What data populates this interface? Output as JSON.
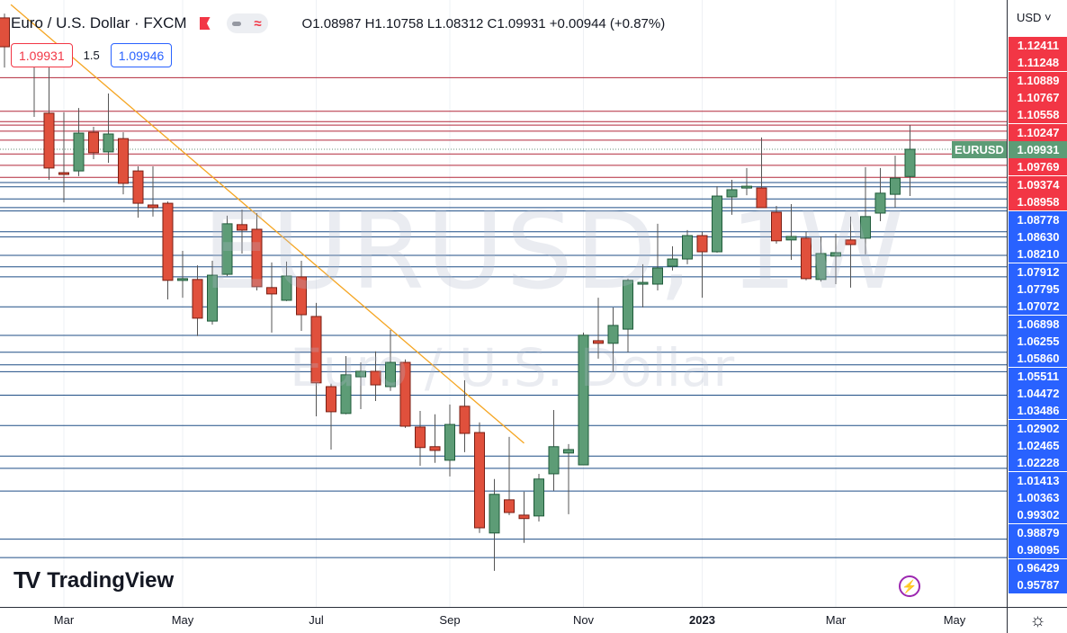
{
  "header": {
    "title": "Euro / U.S. Dollar · FXCM",
    "ohlc": "O1.08987 H1.10758 L1.08312 C1.09931 +0.00944 (+0.87%)",
    "sell_price": "1.09931",
    "spread": "1.5",
    "buy_price": "1.09946"
  },
  "watermark": {
    "symbol": "EURUSD, 1W",
    "description": "Euro / U.S. Dollar"
  },
  "price_axis": {
    "currency": "USD ˅"
  },
  "symbol_tag": "EURUSD",
  "logo": {
    "mark": "17",
    "name": "TradingView"
  },
  "icons": {
    "flag": "flag-icon",
    "minus": "minus-icon",
    "wave": "approx-icon",
    "bolt": "lightning-icon",
    "settings": "settings-sun-icon"
  },
  "colors": {
    "up": "#5d9c76",
    "down": "#e0503c",
    "resistance": "#f23645",
    "support": "#2962ff",
    "last": "#5d9c76",
    "trendline": "#f5a623"
  },
  "chart_data": {
    "type": "candlestick",
    "symbol": "EURUSD",
    "interval": "1W",
    "ylim": [
      0.9408,
      1.151
    ],
    "last_price": 1.09931,
    "candles_fields": [
      "date",
      "open",
      "high",
      "low",
      "close"
    ],
    "candles": [
      [
        "2022-02-07",
        1.1448,
        1.1463,
        1.1276,
        1.1348
      ],
      [
        "2022-02-14",
        1.1348,
        1.1358,
        1.128,
        1.132
      ],
      [
        "2022-02-21",
        1.1329,
        1.1354,
        1.1105,
        1.1292
      ],
      [
        "2022-02-28",
        1.1118,
        1.1276,
        1.0887,
        1.0928
      ],
      [
        "2022-03-07",
        1.0912,
        1.1121,
        1.0809,
        1.0909
      ],
      [
        "2022-03-14",
        1.0918,
        1.1136,
        1.09,
        1.1049
      ],
      [
        "2022-03-21",
        1.1052,
        1.1071,
        1.0959,
        1.0981
      ],
      [
        "2022-03-28",
        1.0984,
        1.1186,
        1.0946,
        1.1046
      ],
      [
        "2022-04-04",
        1.103,
        1.1052,
        1.0837,
        1.0875
      ],
      [
        "2022-04-11",
        1.0918,
        1.0934,
        1.0756,
        1.0806
      ],
      [
        "2022-04-18",
        1.08,
        1.0934,
        1.076,
        1.0791
      ],
      [
        "2022-04-25",
        1.0806,
        1.0812,
        1.0473,
        1.0539
      ],
      [
        "2022-05-02",
        1.0539,
        1.0641,
        1.0479,
        1.0545
      ],
      [
        "2022-05-09",
        1.0542,
        1.0591,
        1.0346,
        1.0408
      ],
      [
        "2022-05-16",
        1.0398,
        1.0607,
        1.0386,
        1.0557
      ],
      [
        "2022-05-23",
        1.056,
        1.0763,
        1.0554,
        1.0735
      ],
      [
        "2022-05-30",
        1.0732,
        1.0784,
        1.0632,
        1.0713
      ],
      [
        "2022-06-06",
        1.0716,
        1.0772,
        1.0504,
        1.0517
      ],
      [
        "2022-06-13",
        1.0514,
        1.0601,
        1.0358,
        1.0492
      ],
      [
        "2022-06-20",
        1.047,
        1.0604,
        1.0467,
        1.0554
      ],
      [
        "2022-06-27",
        1.0551,
        1.0607,
        1.0364,
        1.042
      ],
      [
        "2022-07-04",
        1.0414,
        1.0461,
        1.0068,
        1.0184
      ],
      [
        "2022-07-11",
        1.0171,
        1.0181,
        0.9953,
        1.0084
      ],
      [
        "2022-07-18",
        1.0078,
        1.0277,
        1.0075,
        1.0212
      ],
      [
        "2022-07-25",
        1.0205,
        1.0255,
        1.0093,
        1.0224
      ],
      [
        "2022-08-01",
        1.0224,
        1.0293,
        1.0121,
        1.0177
      ],
      [
        "2022-08-08",
        1.0171,
        1.0367,
        1.0156,
        1.0255
      ],
      [
        "2022-08-15",
        1.0255,
        1.0265,
        1.0028,
        1.0034
      ],
      [
        "2022-08-22",
        1.0031,
        1.0087,
        0.9897,
        0.996
      ],
      [
        "2022-08-29",
        0.9963,
        1.0075,
        0.9907,
        0.995
      ],
      [
        "2022-09-05",
        0.9916,
        1.0109,
        0.986,
        1.004
      ],
      [
        "2022-09-12",
        1.0103,
        1.0193,
        0.9944,
        1.0009
      ],
      [
        "2022-09-19",
        1.0012,
        1.0047,
        0.9664,
        0.9682
      ],
      [
        "2022-09-26",
        0.9664,
        0.9851,
        0.9533,
        0.9798
      ],
      [
        "2022-10-03",
        0.9779,
        0.9997,
        0.9726,
        0.9735
      ],
      [
        "2022-10-10",
        0.9726,
        0.9807,
        0.963,
        0.9714
      ],
      [
        "2022-10-17",
        0.9723,
        0.9869,
        0.9704,
        0.9851
      ],
      [
        "2022-10-24",
        0.9869,
        1.009,
        0.981,
        0.9963
      ],
      [
        "2022-10-31",
        0.9941,
        0.9972,
        0.9729,
        0.9953
      ],
      [
        "2022-11-07",
        0.99,
        1.0358,
        0.99,
        1.0349
      ],
      [
        "2022-11-14",
        1.033,
        1.0479,
        1.0268,
        1.0321
      ],
      [
        "2022-11-21",
        1.0321,
        1.0445,
        1.0221,
        1.0383
      ],
      [
        "2022-11-28",
        1.037,
        1.0545,
        1.029,
        1.0539
      ],
      [
        "2022-12-05",
        1.0526,
        1.0595,
        1.0445,
        1.0532
      ],
      [
        "2022-12-12",
        1.0526,
        1.0735,
        1.0504,
        1.0582
      ],
      [
        "2022-12-19",
        1.0588,
        1.0657,
        1.0573,
        1.0613
      ],
      [
        "2022-12-26",
        1.0613,
        1.0713,
        1.0595,
        1.0694
      ],
      [
        "2023-01-02",
        1.0694,
        1.0707,
        1.0479,
        1.0638
      ],
      [
        "2023-01-09",
        1.0638,
        1.0865,
        1.0635,
        1.0831
      ],
      [
        "2023-01-16",
        1.0828,
        1.0887,
        1.0766,
        1.0853
      ],
      [
        "2023-01-23",
        1.0862,
        1.0928,
        1.0834,
        1.0865
      ],
      [
        "2023-01-30",
        1.0859,
        1.1034,
        1.0791,
        1.0791
      ],
      [
        "2023-02-06",
        1.0775,
        1.0797,
        1.0666,
        1.0676
      ],
      [
        "2023-02-13",
        1.0679,
        1.0803,
        1.061,
        1.0691
      ],
      [
        "2023-02-20",
        1.0685,
        1.0707,
        1.0539,
        1.0545
      ],
      [
        "2023-02-27",
        1.0542,
        1.0691,
        1.0535,
        1.0632
      ],
      [
        "2023-03-06",
        1.0623,
        1.07,
        1.0526,
        1.0635
      ],
      [
        "2023-03-13",
        1.0679,
        1.076,
        1.0514,
        1.0663
      ],
      [
        "2023-03-20",
        1.0685,
        1.0931,
        1.0629,
        1.076
      ],
      [
        "2023-03-27",
        1.0772,
        1.0928,
        1.0744,
        1.0841
      ],
      [
        "2023-04-03",
        1.0837,
        1.0971,
        1.0791,
        1.0893
      ],
      [
        "2023-04-10",
        1.08987,
        1.10758,
        1.08312,
        1.09931
      ]
    ],
    "resistance_levels": [
      1.12411,
      1.11248,
      1.10889,
      1.10767,
      1.10558,
      1.10247,
      1.09769,
      1.09374,
      1.08958
    ],
    "support_levels": [
      1.08778,
      1.0863,
      1.0821,
      1.07912,
      1.07795,
      1.07072,
      1.06898,
      1.06255,
      1.0586,
      1.05511,
      1.04472,
      1.03486,
      1.02902,
      1.02465,
      1.02228,
      1.01413,
      1.00363,
      0.99302,
      0.98879,
      0.98095,
      0.96429,
      0.95787
    ],
    "trendline": [
      [
        "2022-02-10",
        1.1494
      ],
      [
        "2022-10-10",
        0.9975
      ]
    ],
    "x_tick_labels": [
      {
        "date": "2022-03-07",
        "label": "Mar"
      },
      {
        "date": "2022-05-02",
        "label": "May"
      },
      {
        "date": "2022-07-04",
        "label": "Jul"
      },
      {
        "date": "2022-09-05",
        "label": "Sep"
      },
      {
        "date": "2022-11-07",
        "label": "Nov"
      },
      {
        "date": "2023-01-02",
        "label": "2023",
        "year": true
      },
      {
        "date": "2023-03-06",
        "label": "Mar"
      },
      {
        "date": "2023-05-01",
        "label": "May"
      }
    ]
  }
}
